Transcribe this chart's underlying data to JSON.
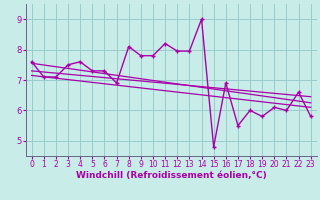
{
  "xlabel": "Windchill (Refroidissement éolien,°C)",
  "bg_color": "#c8ece8",
  "line_color": "#aa00aa",
  "grid_color": "#99cccc",
  "xlim": [
    -0.5,
    23.5
  ],
  "ylim": [
    4.5,
    9.5
  ],
  "xticks": [
    0,
    1,
    2,
    3,
    4,
    5,
    6,
    7,
    8,
    9,
    10,
    11,
    12,
    13,
    14,
    15,
    16,
    17,
    18,
    19,
    20,
    21,
    22,
    23
  ],
  "yticks": [
    5,
    6,
    7,
    8,
    9
  ],
  "data_x": [
    0,
    1,
    2,
    3,
    4,
    5,
    6,
    7,
    8,
    9,
    10,
    11,
    12,
    13,
    14,
    15,
    16,
    17,
    18,
    19,
    20,
    21,
    22,
    23
  ],
  "data_y": [
    7.6,
    7.1,
    7.1,
    7.5,
    7.6,
    7.3,
    7.3,
    6.9,
    8.1,
    7.8,
    7.8,
    8.2,
    7.95,
    7.95,
    9.0,
    4.8,
    6.9,
    5.5,
    6.0,
    5.8,
    6.1,
    6.0,
    6.6,
    5.8
  ],
  "trend1_x": [
    0,
    23
  ],
  "trend1_y": [
    7.55,
    6.25
  ],
  "trend2_x": [
    0,
    23
  ],
  "trend2_y": [
    7.3,
    6.45
  ],
  "trend3_x": [
    0,
    23
  ],
  "trend3_y": [
    7.15,
    6.1
  ],
  "tick_fontsize": 5.5,
  "xlabel_fontsize": 6.5
}
